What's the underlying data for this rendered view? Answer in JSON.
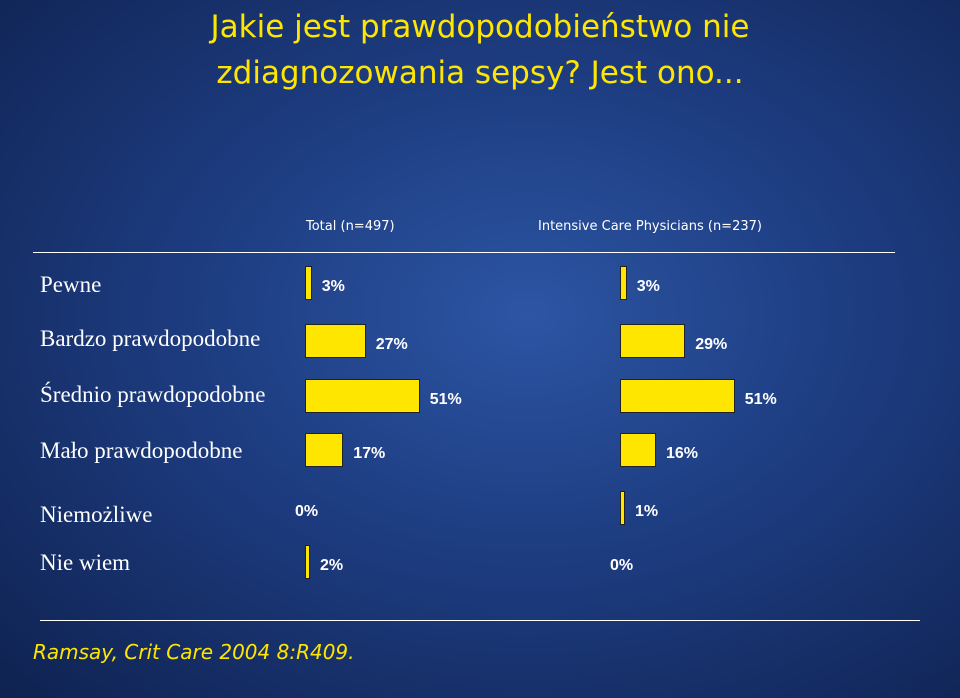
{
  "title_lines": [
    "Jakie jest prawdopodobieństwo nie",
    "zdiagnozowania sepsy? Jest ono..."
  ],
  "citation": "Ramsay, Crit Care 2004 8:R409.",
  "colors": {
    "bar": "#ffe600",
    "title": "#ffe600",
    "text": "#ffffff"
  },
  "chart_data": {
    "type": "bar",
    "orientation": "horizontal",
    "categories": [
      "Pewne",
      "Bardzo prawdopodobne",
      "Średnio prawdopodobne",
      "Mało prawdopodobne",
      "Niemożliwe",
      "Nie wiem"
    ],
    "series": [
      {
        "name": "Total (n=497)",
        "values": [
          3,
          27,
          51,
          17,
          0,
          2
        ],
        "labels": [
          "3%",
          "27%",
          "51%",
          "17%",
          "0%",
          "2%"
        ]
      },
      {
        "name": "Intensive Care Physicians (n=237)",
        "values": [
          3,
          29,
          51,
          16,
          1,
          0
        ],
        "labels": [
          "3%",
          "29%",
          "51%",
          "16%",
          "1%",
          "0%"
        ]
      }
    ]
  }
}
